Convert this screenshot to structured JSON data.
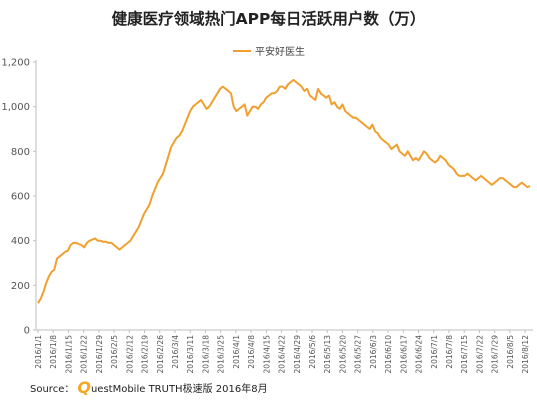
{
  "title": "健康医疗领域热门APP每日活跃用户数（万）",
  "legend": {
    "series_name": "平安好医生"
  },
  "source": {
    "prefix": "Source：",
    "brand_q": "Q",
    "rest": "uestMobile TRUTH极速版 2016年8月"
  },
  "colors": {
    "line": "#f0a030",
    "axis": "#bfbfbf"
  },
  "chart_data": {
    "type": "line",
    "x_tick_labels": [
      "2016/1/1",
      "2016/1/8",
      "2016/1/15",
      "2016/1/22",
      "2016/1/29",
      "2016/2/5",
      "2016/2/12",
      "2016/2/19",
      "2016/2/26",
      "2016/3/4",
      "2016/3/11",
      "2016/3/18",
      "2016/3/25",
      "2016/4/1",
      "2016/4/8",
      "2016/4/15",
      "2016/4/22",
      "2016/4/29",
      "2016/5/6",
      "2016/5/13",
      "2016/5/20",
      "2016/5/27",
      "2016/6/3",
      "2016/6/10",
      "2016/6/17",
      "2016/6/24",
      "2016/7/1",
      "2016/7/8",
      "2016/7/15",
      "2016/7/22",
      "2016/7/29",
      "2016/8/5",
      "2016/8/12"
    ],
    "y_ticks": [
      0,
      200,
      400,
      600,
      800,
      1000,
      1200
    ],
    "y_tick_labels": [
      "0",
      "200",
      "400",
      "600",
      "800",
      "1,000",
      "1,200"
    ],
    "ylim": [
      0,
      1200
    ],
    "grid": false,
    "legend_position": "top-center",
    "series": [
      {
        "name": "平安好医生",
        "values": [
          120,
          140,
          170,
          210,
          240,
          260,
          270,
          320,
          330,
          340,
          350,
          355,
          380,
          390,
          390,
          385,
          380,
          370,
          390,
          400,
          405,
          410,
          400,
          400,
          395,
          395,
          390,
          390,
          380,
          370,
          360,
          370,
          380,
          390,
          400,
          420,
          440,
          460,
          490,
          520,
          540,
          560,
          600,
          630,
          660,
          680,
          700,
          740,
          780,
          820,
          840,
          860,
          870,
          890,
          920,
          950,
          980,
          1000,
          1010,
          1020,
          1030,
          1010,
          990,
          1000,
          1020,
          1040,
          1060,
          1080,
          1090,
          1080,
          1070,
          1060,
          1000,
          980,
          990,
          1000,
          1010,
          960,
          980,
          1000,
          1000,
          990,
          1010,
          1020,
          1040,
          1050,
          1060,
          1060,
          1070,
          1090,
          1090,
          1080,
          1100,
          1110,
          1120,
          1110,
          1100,
          1090,
          1070,
          1080,
          1050,
          1040,
          1030,
          1080,
          1060,
          1050,
          1040,
          1050,
          1010,
          1020,
          1000,
          990,
          1010,
          980,
          970,
          960,
          950,
          950,
          940,
          930,
          920,
          910,
          900,
          920,
          890,
          880,
          860,
          850,
          840,
          830,
          810,
          820,
          830,
          800,
          790,
          780,
          800,
          780,
          760,
          770,
          760,
          780,
          800,
          790,
          770,
          760,
          750,
          760,
          780,
          770,
          760,
          740,
          730,
          720,
          700,
          690,
          690,
          690,
          700,
          690,
          680,
          670,
          680,
          690,
          680,
          670,
          660,
          650,
          660,
          670,
          680,
          680,
          670,
          660,
          650,
          640,
          640,
          650,
          660,
          650,
          640,
          645
        ]
      }
    ]
  }
}
